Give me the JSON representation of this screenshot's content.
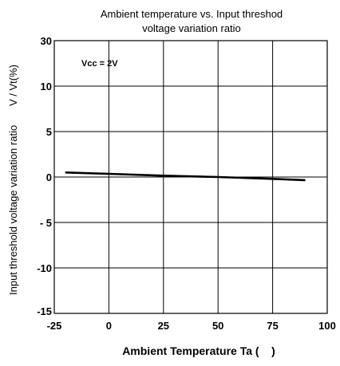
{
  "chart_data": {
    "type": "line",
    "title_lines": [
      "Ambient temperature vs. Input threshod",
      "voltage variation ratio"
    ],
    "xlabel": "Ambient Temperature Ta (    )",
    "ylabel": "Input threshold voltage variation ratio",
    "ylabel_unit": "V / Vt(%)",
    "annotation": "Vcc = 2V",
    "x_ticks": [
      -25,
      0,
      25,
      50,
      75,
      100
    ],
    "x_tick_labels": [
      "-25",
      "0",
      "25",
      "50",
      "75",
      "100"
    ],
    "y_ticks": [
      30,
      10,
      5,
      0,
      -5,
      -10,
      -15
    ],
    "y_tick_labels": [
      "30",
      "10",
      "5",
      "0",
      "- 5",
      "-10",
      "-15"
    ],
    "xlim": [
      -25,
      100
    ],
    "grid": true,
    "series": [
      {
        "x": [
          -20,
          0,
          25,
          50,
          75,
          90
        ],
        "y": [
          0.5,
          0.35,
          0.15,
          0.0,
          -0.2,
          -0.35
        ]
      }
    ]
  }
}
